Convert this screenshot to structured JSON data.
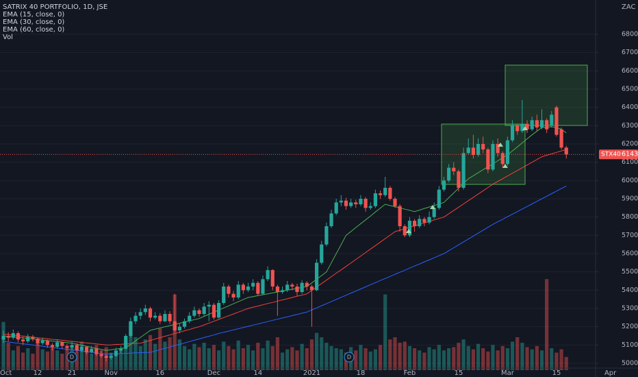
{
  "chart_data": {
    "type": "candlestick",
    "title": "SATRIX 40 PORTFOLIO, 1D, JSE",
    "currency": "ZAC",
    "symbol": "STX40",
    "volume_label": "Vol",
    "markers": [
      "D",
      "D"
    ],
    "up_color": "#26a69a",
    "down_color": "#ef5350",
    "ylim": [
      4962.5,
      6987.5
    ],
    "yticks": [
      5000,
      5100,
      5200,
      5300,
      5400,
      5500,
      5600,
      5700,
      5800,
      5900,
      6000,
      6100,
      6200,
      6300,
      6400,
      6500,
      6600,
      6700,
      6800
    ],
    "vlim": [
      0,
      1000
    ],
    "grid": true,
    "categories": [
      "Oct",
      null,
      null,
      null,
      null,
      null,
      null,
      "12",
      null,
      null,
      null,
      null,
      null,
      null,
      "21",
      null,
      null,
      null,
      null,
      null,
      null,
      null,
      "Nov",
      null,
      null,
      null,
      null,
      null,
      null,
      null,
      null,
      null,
      "16",
      null,
      null,
      null,
      null,
      null,
      null,
      null,
      null,
      null,
      null,
      "Dec",
      null,
      null,
      null,
      null,
      null,
      null,
      null,
      null,
      "14",
      null,
      null,
      null,
      null,
      null,
      null,
      null,
      null,
      null,
      null,
      "2021",
      null,
      null,
      null,
      null,
      null,
      null,
      null,
      null,
      null,
      "18",
      null,
      null,
      null,
      null,
      null,
      null,
      null,
      null,
      null,
      "Feb",
      null,
      null,
      null,
      null,
      null,
      null,
      null,
      null,
      null,
      "15",
      null,
      null,
      null,
      null,
      null,
      null,
      null,
      null,
      null,
      "Mar",
      null,
      null,
      null,
      null,
      null,
      null,
      null,
      null,
      null,
      "15",
      null,
      null,
      null,
      null,
      null,
      null,
      null,
      null,
      null,
      null,
      "Apr"
    ],
    "ohlc": [
      [
        5130,
        5180,
        5110,
        5150
      ],
      [
        5150,
        5170,
        5120,
        5140
      ],
      [
        5140,
        5185,
        5130,
        5165
      ],
      [
        5165,
        5175,
        5115,
        5130
      ],
      [
        5130,
        5145,
        5100,
        5120
      ],
      [
        5120,
        5160,
        5110,
        5145
      ],
      [
        5145,
        5155,
        5120,
        5135
      ],
      [
        5135,
        5140,
        5095,
        5110
      ],
      [
        5110,
        5140,
        5100,
        5125
      ],
      [
        5125,
        5130,
        5085,
        5100
      ],
      [
        5100,
        5110,
        5070,
        5090
      ],
      [
        5090,
        5130,
        5080,
        5115
      ],
      [
        5115,
        5120,
        5080,
        5095
      ],
      [
        5095,
        5105,
        5070,
        5085
      ],
      [
        5085,
        5120,
        5075,
        5100
      ],
      [
        5100,
        5110,
        5060,
        5070
      ],
      [
        5070,
        5100,
        5060,
        5090
      ],
      [
        5090,
        5095,
        5050,
        5060
      ],
      [
        5060,
        5095,
        5055,
        5080
      ],
      [
        5080,
        5085,
        5040,
        5050
      ],
      [
        5050,
        5070,
        5030,
        5040
      ],
      [
        5040,
        5050,
        5010,
        5030
      ],
      [
        5030,
        5055,
        5020,
        5040
      ],
      [
        5040,
        5085,
        5035,
        5070
      ],
      [
        5070,
        5095,
        5055,
        5080
      ],
      [
        5080,
        5160,
        5075,
        5150
      ],
      [
        5150,
        5250,
        5140,
        5230
      ],
      [
        5230,
        5280,
        5215,
        5260
      ],
      [
        5260,
        5300,
        5240,
        5280
      ],
      [
        5280,
        5320,
        5265,
        5300
      ],
      [
        5300,
        5310,
        5230,
        5250
      ],
      [
        5250,
        5280,
        5240,
        5260
      ],
      [
        5260,
        5275,
        5215,
        5230
      ],
      [
        5230,
        5290,
        5225,
        5270
      ],
      [
        5270,
        5285,
        5215,
        5230
      ],
      [
        5230,
        5380,
        5170,
        5180
      ],
      [
        5180,
        5215,
        5165,
        5200
      ],
      [
        5200,
        5245,
        5190,
        5230
      ],
      [
        5230,
        5280,
        5220,
        5260
      ],
      [
        5260,
        5310,
        5250,
        5290
      ],
      [
        5290,
        5300,
        5255,
        5270
      ],
      [
        5270,
        5330,
        5260,
        5310
      ],
      [
        5310,
        5340,
        5230,
        5320
      ],
      [
        5320,
        5330,
        5240,
        5250
      ],
      [
        5250,
        5345,
        5245,
        5330
      ],
      [
        5330,
        5440,
        5320,
        5420
      ],
      [
        5420,
        5430,
        5360,
        5380
      ],
      [
        5380,
        5395,
        5340,
        5360
      ],
      [
        5360,
        5450,
        5350,
        5430
      ],
      [
        5430,
        5440,
        5380,
        5400
      ],
      [
        5400,
        5440,
        5390,
        5420
      ],
      [
        5420,
        5460,
        5400,
        5440
      ],
      [
        5440,
        5450,
        5370,
        5380
      ],
      [
        5380,
        5480,
        5375,
        5460
      ],
      [
        5460,
        5530,
        5450,
        5510
      ],
      [
        5510,
        5515,
        5400,
        5420
      ],
      [
        5420,
        5430,
        5260,
        5390
      ],
      [
        5390,
        5420,
        5380,
        5400
      ],
      [
        5400,
        5450,
        5390,
        5430
      ],
      [
        5430,
        5440,
        5400,
        5420
      ],
      [
        5420,
        5435,
        5370,
        5390
      ],
      [
        5390,
        5455,
        5380,
        5440
      ],
      [
        5440,
        5450,
        5400,
        5420
      ],
      [
        5420,
        5430,
        5200,
        5400
      ],
      [
        5400,
        5570,
        5395,
        5550
      ],
      [
        5550,
        5670,
        5540,
        5650
      ],
      [
        5650,
        5770,
        5640,
        5750
      ],
      [
        5750,
        5840,
        5740,
        5820
      ],
      [
        5820,
        5900,
        5810,
        5880
      ],
      [
        5880,
        5920,
        5860,
        5890
      ],
      [
        5890,
        5905,
        5840,
        5860
      ],
      [
        5860,
        5900,
        5850,
        5880
      ],
      [
        5880,
        5895,
        5850,
        5870
      ],
      [
        5870,
        5920,
        5860,
        5900
      ],
      [
        5900,
        5910,
        5830,
        5850
      ],
      [
        5850,
        5880,
        5840,
        5860
      ],
      [
        5860,
        5950,
        5850,
        5930
      ],
      [
        5930,
        5945,
        5900,
        5920
      ],
      [
        5920,
        6020,
        5910,
        5960
      ],
      [
        5960,
        5970,
        5890,
        5900
      ],
      [
        5900,
        5910,
        5850,
        5860
      ],
      [
        5860,
        5870,
        5720,
        5750
      ],
      [
        5750,
        5760,
        5690,
        5700
      ],
      [
        5700,
        5800,
        5690,
        5780
      ],
      [
        5780,
        5790,
        5720,
        5750
      ],
      [
        5750,
        5810,
        5740,
        5790
      ],
      [
        5790,
        5800,
        5750,
        5770
      ],
      [
        5770,
        5830,
        5760,
        5800
      ],
      [
        5800,
        5880,
        5790,
        5850
      ],
      [
        5850,
        5970,
        5840,
        5950
      ],
      [
        5950,
        6020,
        5940,
        6000
      ],
      [
        6000,
        6090,
        5990,
        6070
      ],
      [
        6070,
        6100,
        6030,
        6050
      ],
      [
        6050,
        6060,
        5940,
        5960
      ],
      [
        5960,
        6180,
        5950,
        6150
      ],
      [
        6150,
        6230,
        6140,
        6180
      ],
      [
        6180,
        6250,
        6120,
        6140
      ],
      [
        6140,
        6230,
        6130,
        6200
      ],
      [
        6200,
        6240,
        6150,
        6170
      ],
      [
        6170,
        6180,
        6040,
        6060
      ],
      [
        6060,
        6220,
        6050,
        6200
      ],
      [
        6200,
        6230,
        6130,
        6150
      ],
      [
        6150,
        6160,
        6070,
        6090
      ],
      [
        6090,
        6240,
        6080,
        6220
      ],
      [
        6220,
        6330,
        6210,
        6300
      ],
      [
        6300,
        6310,
        6250,
        6270
      ],
      [
        6270,
        6440,
        6260,
        6310
      ],
      [
        6310,
        6330,
        6260,
        6280
      ],
      [
        6280,
        6350,
        6270,
        6330
      ],
      [
        6330,
        6360,
        6270,
        6290
      ],
      [
        6290,
        6390,
        6280,
        6330
      ],
      [
        6330,
        6340,
        6260,
        6280
      ],
      [
        6300,
        6380,
        6290,
        6360
      ],
      [
        6400,
        6410,
        6240,
        6250
      ],
      [
        6280,
        6290,
        6170,
        6180
      ],
      [
        6180,
        6190,
        6120,
        6143
      ],
      null,
      null,
      null,
      null,
      null,
      null,
      null,
      null,
      null
    ],
    "volume": [
      440,
      250,
      180,
      220,
      160,
      200,
      150,
      260,
      190,
      170,
      230,
      180,
      150,
      210,
      200,
      170,
      260,
      190,
      150,
      230,
      180,
      210,
      160,
      140,
      190,
      260,
      400,
      300,
      220,
      280,
      320,
      240,
      380,
      260,
      300,
      690,
      280,
      220,
      190,
      240,
      210,
      250,
      200,
      230,
      180,
      260,
      220,
      190,
      270,
      200,
      230,
      180,
      250,
      200,
      270,
      220,
      300,
      160,
      190,
      210,
      180,
      240,
      200,
      280,
      340,
      300,
      250,
      220,
      200,
      190,
      160,
      210,
      180,
      230,
      200,
      170,
      190,
      230,
      690,
      280,
      300,
      250,
      260,
      220,
      200,
      180,
      160,
      210,
      190,
      230,
      180,
      200,
      210,
      250,
      280,
      220,
      190,
      240,
      200,
      170,
      230,
      180,
      220,
      200,
      260,
      300,
      250,
      210,
      190,
      220,
      180,
      830,
      200,
      160,
      190,
      120,
      null,
      null,
      null,
      null,
      null,
      null,
      null,
      null,
      null
    ],
    "series": [
      {
        "name": "EMA (15, close, 0)",
        "color": "#4caf50",
        "values": [
          5150,
          5147,
          5144,
          5141,
          5139,
          5136,
          5133,
          5130,
          5127,
          5124,
          5121,
          5119,
          5116,
          5113,
          5110,
          5104,
          5099,
          5093,
          5087,
          5081,
          5076,
          5070,
          5074,
          5078,
          5081,
          5085,
          5104,
          5123,
          5142,
          5161,
          5180,
          5187,
          5193,
          5200,
          5206,
          5213,
          5219,
          5226,
          5232,
          5239,
          5245,
          5257,
          5268,
          5280,
          5291,
          5303,
          5314,
          5326,
          5337,
          5349,
          5360,
          5365,
          5370,
          5375,
          5380,
          5385,
          5390,
          5395,
          5400,
          5405,
          5410,
          5415,
          5420,
          5440,
          5460,
          5480,
          5500,
          5550,
          5600,
          5650,
          5700,
          5721,
          5743,
          5764,
          5785,
          5806,
          5828,
          5849,
          5870,
          5863,
          5857,
          5850,
          5843,
          5837,
          5830,
          5838,
          5847,
          5855,
          5863,
          5872,
          5880,
          5906,
          5932,
          5958,
          5984,
          6010,
          6026,
          6043,
          6059,
          6075,
          6091,
          6108,
          6124,
          6140,
          6162,
          6184,
          6206,
          6228,
          6250,
          6270,
          6290,
          6292,
          6294,
          6290,
          6280,
          6260,
          null,
          null,
          null,
          null,
          null,
          null,
          null,
          null,
          null
        ]
      },
      {
        "name": "EMA (30, close, 0)",
        "color": "#f44336",
        "values": [
          5160,
          5157,
          5154,
          5151,
          5149,
          5146,
          5143,
          5140,
          5137,
          5134,
          5131,
          5129,
          5126,
          5123,
          5120,
          5117,
          5114,
          5111,
          5109,
          5106,
          5103,
          5100,
          5101,
          5103,
          5104,
          5106,
          5107,
          5109,
          5110,
          5118,
          5125,
          5133,
          5140,
          5148,
          5155,
          5163,
          5170,
          5178,
          5185,
          5193,
          5200,
          5210,
          5220,
          5230,
          5240,
          5250,
          5260,
          5270,
          5280,
          5290,
          5300,
          5307,
          5313,
          5320,
          5327,
          5333,
          5340,
          5347,
          5353,
          5360,
          5367,
          5373,
          5380,
          5399,
          5418,
          5436,
          5455,
          5474,
          5493,
          5511,
          5530,
          5549,
          5568,
          5587,
          5606,
          5625,
          5644,
          5663,
          5682,
          5701,
          5720,
          5728,
          5736,
          5744,
          5752,
          5760,
          5768,
          5776,
          5784,
          5792,
          5800,
          5818,
          5836,
          5854,
          5872,
          5890,
          5908,
          5926,
          5944,
          5962,
          5980,
          5995,
          6010,
          6025,
          6040,
          6055,
          6070,
          6085,
          6100,
          6115,
          6130,
          6138,
          6146,
          6154,
          6162,
          6170,
          null,
          null,
          null,
          null,
          null,
          null,
          null,
          null,
          null
        ]
      },
      {
        "name": "EMA (60, close, 0)",
        "color": "#2962ff",
        "values": [
          5120,
          5117,
          5113,
          5110,
          5107,
          5103,
          5100,
          5097,
          5093,
          5090,
          5087,
          5083,
          5080,
          5077,
          5073,
          5070,
          5067,
          5063,
          5060,
          5057,
          5053,
          5050,
          5051,
          5052,
          5053,
          5054,
          5056,
          5057,
          5058,
          5059,
          5060,
          5067,
          5075,
          5082,
          5089,
          5097,
          5104,
          5111,
          5119,
          5126,
          5133,
          5141,
          5148,
          5155,
          5163,
          5170,
          5176,
          5183,
          5189,
          5196,
          5202,
          5209,
          5215,
          5222,
          5228,
          5235,
          5241,
          5248,
          5254,
          5261,
          5267,
          5274,
          5280,
          5292,
          5303,
          5315,
          5326,
          5338,
          5349,
          5361,
          5372,
          5384,
          5395,
          5407,
          5418,
          5430,
          5441,
          5453,
          5464,
          5475,
          5487,
          5498,
          5509,
          5521,
          5532,
          5543,
          5555,
          5566,
          5577,
          5589,
          5600,
          5616,
          5632,
          5648,
          5664,
          5680,
          5696,
          5712,
          5728,
          5744,
          5760,
          5774,
          5788,
          5802,
          5816,
          5830,
          5844,
          5858,
          5872,
          5886,
          5900,
          5914,
          5928,
          5942,
          5956,
          5970,
          null,
          null,
          null,
          null,
          null,
          null,
          null,
          null,
          null
        ]
      }
    ]
  }
}
